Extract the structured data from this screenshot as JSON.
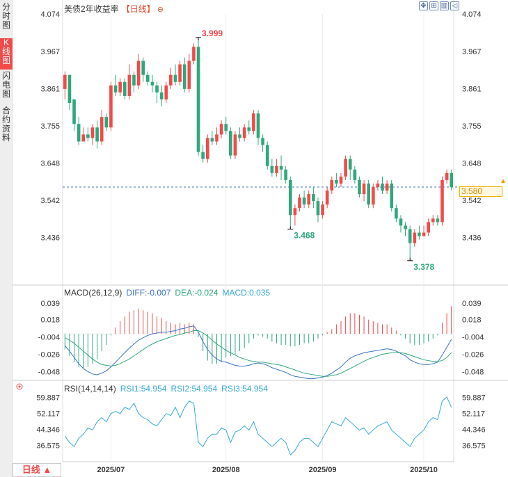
{
  "sidebar": {
    "tabs": [
      {
        "label": "分时图",
        "active": false
      },
      {
        "label": "K线图",
        "active": true
      },
      {
        "label": "闪电图",
        "active": false
      },
      {
        "label": "合约资料",
        "active": false
      }
    ]
  },
  "toolbar": {
    "buttons": [
      "move-icon",
      "zoom-in-icon",
      "period-icon",
      "last-icon"
    ]
  },
  "colors": {
    "up": "#f14a4a",
    "down": "#2ea87b",
    "diff_line": "#3a74c6",
    "dea_line": "#2ea87b",
    "rsi_line": "#35a8d6",
    "last_price": "#f0a000"
  },
  "price_panel": {
    "title": "美债2年收益率",
    "period_tag": "【日线】",
    "last_price": "3.580",
    "high_label": "3.999",
    "low_label_1": "3.468",
    "low_label_2": "3.378"
  },
  "macd_panel": {
    "label": "MACD(26,12,9)",
    "diff": "DIFF:-0.007",
    "dea": "DEA:-0.024",
    "macd": "MACD:0.035"
  },
  "rsi_panel": {
    "label": "RSI(14,14,14)",
    "rsi1": "RSI1:54.954",
    "rsi2": "RSI2:54.954",
    "rsi3": "RSI3:54.954"
  },
  "period_button": "日线 ▲",
  "chart_data": [
    {
      "type": "candlestick",
      "title": "美债2年收益率",
      "ylim": [
        3.33,
        4.074
      ],
      "y_ticks": [
        "4.074",
        "3.967",
        "3.861",
        "3.755",
        "3.648",
        "3.542",
        "3.436"
      ],
      "x_labels": [
        {
          "label": "2025/07",
          "index": 10
        },
        {
          "label": "2025/08",
          "index": 35
        },
        {
          "label": "2025/09",
          "index": 56
        },
        {
          "label": "2025/10",
          "index": 78
        }
      ],
      "last_value": 3.58,
      "candles": [
        [
          3.86,
          3.9,
          3.91,
          3.83
        ],
        [
          3.9,
          3.82,
          3.9,
          3.8
        ],
        [
          3.83,
          3.76,
          3.83,
          3.74
        ],
        [
          3.76,
          3.71,
          3.78,
          3.7
        ],
        [
          3.71,
          3.73,
          3.75,
          3.71
        ],
        [
          3.73,
          3.72,
          3.75,
          3.71
        ],
        [
          3.72,
          3.75,
          3.76,
          3.7
        ],
        [
          3.75,
          3.71,
          3.77,
          3.69
        ],
        [
          3.71,
          3.78,
          3.8,
          3.7
        ],
        [
          3.78,
          3.75,
          3.79,
          3.74
        ],
        [
          3.75,
          3.87,
          3.88,
          3.74
        ],
        [
          3.87,
          3.85,
          3.9,
          3.84
        ],
        [
          3.85,
          3.88,
          3.89,
          3.84
        ],
        [
          3.88,
          3.84,
          3.89,
          3.83
        ],
        [
          3.84,
          3.9,
          3.93,
          3.83
        ],
        [
          3.9,
          3.87,
          3.91,
          3.85
        ],
        [
          3.87,
          3.94,
          3.96,
          3.86
        ],
        [
          3.94,
          3.9,
          3.95,
          3.88
        ],
        [
          3.9,
          3.88,
          3.91,
          3.87
        ],
        [
          3.88,
          3.87,
          3.9,
          3.85
        ],
        [
          3.87,
          3.85,
          3.88,
          3.82
        ],
        [
          3.85,
          3.83,
          3.87,
          3.81
        ],
        [
          3.83,
          3.87,
          3.88,
          3.82
        ],
        [
          3.87,
          3.9,
          3.92,
          3.86
        ],
        [
          3.9,
          3.88,
          3.93,
          3.87
        ],
        [
          3.88,
          3.93,
          3.94,
          3.87
        ],
        [
          3.93,
          3.86,
          3.95,
          3.85
        ],
        [
          3.86,
          3.94,
          3.96,
          3.85
        ],
        [
          3.94,
          3.98,
          3.99,
          3.93
        ],
        [
          3.98,
          3.68,
          3.999,
          3.67
        ],
        [
          3.68,
          3.66,
          3.7,
          3.65
        ],
        [
          3.66,
          3.72,
          3.73,
          3.65
        ],
        [
          3.72,
          3.71,
          3.74,
          3.7
        ],
        [
          3.71,
          3.73,
          3.75,
          3.7
        ],
        [
          3.73,
          3.76,
          3.77,
          3.72
        ],
        [
          3.76,
          3.74,
          3.78,
          3.73
        ],
        [
          3.74,
          3.67,
          3.75,
          3.66
        ],
        [
          3.67,
          3.73,
          3.74,
          3.66
        ],
        [
          3.73,
          3.72,
          3.75,
          3.71
        ],
        [
          3.72,
          3.75,
          3.76,
          3.71
        ],
        [
          3.75,
          3.74,
          3.77,
          3.73
        ],
        [
          3.74,
          3.79,
          3.8,
          3.73
        ],
        [
          3.79,
          3.72,
          3.8,
          3.7
        ],
        [
          3.72,
          3.7,
          3.73,
          3.68
        ],
        [
          3.7,
          3.64,
          3.71,
          3.63
        ],
        [
          3.64,
          3.62,
          3.66,
          3.61
        ],
        [
          3.62,
          3.64,
          3.66,
          3.61
        ],
        [
          3.64,
          3.63,
          3.67,
          3.6
        ],
        [
          3.63,
          3.6,
          3.64,
          3.59
        ],
        [
          3.6,
          3.5,
          3.61,
          3.468
        ],
        [
          3.5,
          3.52,
          3.53,
          3.47
        ],
        [
          3.52,
          3.55,
          3.56,
          3.51
        ],
        [
          3.55,
          3.53,
          3.57,
          3.52
        ],
        [
          3.53,
          3.56,
          3.57,
          3.52
        ],
        [
          3.56,
          3.54,
          3.58,
          3.52
        ],
        [
          3.54,
          3.5,
          3.55,
          3.48
        ],
        [
          3.5,
          3.53,
          3.54,
          3.49
        ],
        [
          3.53,
          3.57,
          3.58,
          3.52
        ],
        [
          3.57,
          3.6,
          3.61,
          3.56
        ],
        [
          3.6,
          3.59,
          3.62,
          3.58
        ],
        [
          3.59,
          3.61,
          3.62,
          3.58
        ],
        [
          3.61,
          3.66,
          3.67,
          3.6
        ],
        [
          3.66,
          3.63,
          3.67,
          3.6
        ],
        [
          3.63,
          3.6,
          3.64,
          3.59
        ],
        [
          3.6,
          3.56,
          3.61,
          3.55
        ],
        [
          3.56,
          3.59,
          3.6,
          3.54
        ],
        [
          3.59,
          3.53,
          3.6,
          3.52
        ],
        [
          3.53,
          3.58,
          3.59,
          3.52
        ],
        [
          3.58,
          3.59,
          3.6,
          3.57
        ],
        [
          3.59,
          3.57,
          3.61,
          3.56
        ],
        [
          3.57,
          3.59,
          3.6,
          3.56
        ],
        [
          3.59,
          3.52,
          3.6,
          3.51
        ],
        [
          3.52,
          3.49,
          3.53,
          3.48
        ],
        [
          3.49,
          3.47,
          3.5,
          3.45
        ],
        [
          3.47,
          3.46,
          3.48,
          3.44
        ],
        [
          3.46,
          3.42,
          3.47,
          3.378
        ],
        [
          3.42,
          3.45,
          3.46,
          3.41
        ],
        [
          3.45,
          3.44,
          3.47,
          3.43
        ],
        [
          3.44,
          3.45,
          3.47,
          3.44
        ],
        [
          3.45,
          3.48,
          3.49,
          3.44
        ],
        [
          3.48,
          3.49,
          3.5,
          3.47
        ],
        [
          3.49,
          3.48,
          3.5,
          3.47
        ],
        [
          3.48,
          3.6,
          3.61,
          3.47
        ],
        [
          3.6,
          3.62,
          3.63,
          3.59
        ],
        [
          3.62,
          3.58,
          3.63,
          3.57
        ]
      ]
    },
    {
      "type": "macd",
      "title": "MACD(26,12,9)",
      "ylim": [
        -0.06,
        0.046
      ],
      "y_ticks": [
        "0.039",
        "0.018",
        "-0.004",
        "-0.026",
        "-0.048"
      ],
      "diff": [
        -0.015,
        -0.022,
        -0.03,
        -0.038,
        -0.044,
        -0.048,
        -0.051,
        -0.052,
        -0.05,
        -0.047,
        -0.042,
        -0.036,
        -0.03,
        -0.024,
        -0.018,
        -0.013,
        -0.008,
        -0.005,
        -0.002,
        0.0,
        0.001,
        0.002,
        0.002,
        0.003,
        0.004,
        0.006,
        0.007,
        0.009,
        0.01,
        0.002,
        -0.01,
        -0.02,
        -0.027,
        -0.032,
        -0.035,
        -0.036,
        -0.038,
        -0.04,
        -0.041,
        -0.041,
        -0.04,
        -0.038,
        -0.037,
        -0.038,
        -0.04,
        -0.043,
        -0.045,
        -0.047,
        -0.049,
        -0.052,
        -0.054,
        -0.055,
        -0.056,
        -0.057,
        -0.057,
        -0.056,
        -0.055,
        -0.053,
        -0.05,
        -0.046,
        -0.042,
        -0.036,
        -0.031,
        -0.028,
        -0.026,
        -0.024,
        -0.023,
        -0.022,
        -0.021,
        -0.02,
        -0.019,
        -0.02,
        -0.022,
        -0.025,
        -0.028,
        -0.033,
        -0.036,
        -0.038,
        -0.039,
        -0.039,
        -0.038,
        -0.036,
        -0.027,
        -0.017,
        -0.007
      ],
      "dea": [
        -0.005,
        -0.008,
        -0.012,
        -0.017,
        -0.022,
        -0.027,
        -0.032,
        -0.036,
        -0.039,
        -0.04,
        -0.041,
        -0.04,
        -0.038,
        -0.035,
        -0.032,
        -0.028,
        -0.024,
        -0.02,
        -0.016,
        -0.013,
        -0.01,
        -0.008,
        -0.006,
        -0.004,
        -0.002,
        -0.001,
        0.001,
        0.002,
        0.004,
        0.004,
        0.001,
        -0.003,
        -0.008,
        -0.013,
        -0.017,
        -0.021,
        -0.024,
        -0.027,
        -0.03,
        -0.032,
        -0.034,
        -0.035,
        -0.036,
        -0.036,
        -0.037,
        -0.038,
        -0.039,
        -0.04,
        -0.042,
        -0.044,
        -0.046,
        -0.048,
        -0.05,
        -0.051,
        -0.052,
        -0.053,
        -0.054,
        -0.054,
        -0.053,
        -0.052,
        -0.05,
        -0.047,
        -0.044,
        -0.041,
        -0.038,
        -0.035,
        -0.032,
        -0.03,
        -0.028,
        -0.026,
        -0.025,
        -0.024,
        -0.024,
        -0.024,
        -0.025,
        -0.027,
        -0.029,
        -0.031,
        -0.033,
        -0.034,
        -0.035,
        -0.035,
        -0.034,
        -0.03,
        -0.024
      ],
      "macd": [
        -0.02,
        -0.028,
        -0.036,
        -0.042,
        -0.044,
        -0.042,
        -0.038,
        -0.032,
        -0.022,
        -0.014,
        -0.002,
        0.008,
        0.016,
        0.022,
        0.028,
        0.03,
        0.032,
        0.03,
        0.028,
        0.026,
        0.022,
        0.02,
        0.016,
        0.014,
        0.012,
        0.014,
        0.012,
        0.014,
        0.012,
        -0.004,
        -0.022,
        -0.034,
        -0.038,
        -0.038,
        -0.036,
        -0.03,
        -0.028,
        -0.026,
        -0.022,
        -0.018,
        -0.012,
        -0.006,
        -0.002,
        -0.004,
        -0.006,
        -0.01,
        -0.012,
        -0.014,
        -0.014,
        -0.016,
        -0.016,
        -0.014,
        -0.012,
        -0.012,
        -0.01,
        -0.006,
        -0.002,
        0.002,
        0.006,
        0.012,
        0.016,
        0.022,
        0.026,
        0.026,
        0.024,
        0.022,
        0.018,
        0.016,
        0.014,
        0.012,
        0.012,
        0.008,
        0.004,
        -0.002,
        -0.006,
        -0.012,
        -0.014,
        -0.014,
        -0.012,
        -0.01,
        -0.006,
        -0.002,
        0.014,
        0.026,
        0.035
      ]
    },
    {
      "type": "line",
      "title": "RSI(14,14,14)",
      "ylim": [
        30,
        62
      ],
      "y_ticks": [
        "59.887",
        "52.117",
        "44.346",
        "36.575"
      ],
      "rsi": [
        41,
        38,
        36,
        40,
        42,
        45,
        44,
        48,
        50,
        48,
        52,
        53,
        52,
        55,
        54,
        57,
        52,
        50,
        49,
        47,
        46,
        49,
        52,
        51,
        55,
        50,
        55,
        58,
        57,
        38,
        36,
        40,
        42,
        42,
        45,
        44,
        38,
        43,
        44,
        46,
        44,
        48,
        42,
        40,
        38,
        36,
        38,
        40,
        38,
        32,
        34,
        38,
        40,
        40,
        38,
        36,
        40,
        44,
        48,
        47,
        46,
        50,
        48,
        46,
        44,
        45,
        42,
        44,
        46,
        47,
        48,
        44,
        42,
        40,
        38,
        36,
        40,
        42,
        44,
        48,
        50,
        49,
        58,
        60,
        55
      ]
    }
  ]
}
